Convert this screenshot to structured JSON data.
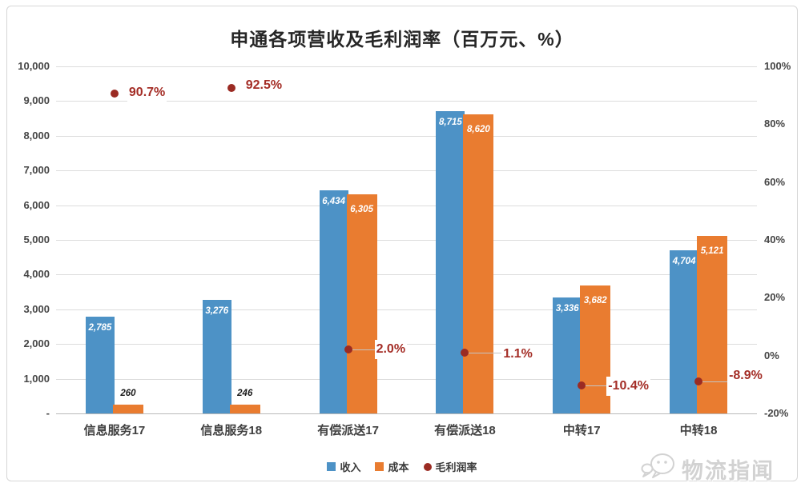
{
  "chart_data": {
    "type": "bar",
    "title": "申通各项营收及毛利润率（百万元、%）",
    "categories": [
      "信息服务17",
      "信息服务18",
      "有偿派送17",
      "有偿派送18",
      "中转17",
      "中转18"
    ],
    "series": [
      {
        "name": "收入",
        "type": "bar",
        "axis": "left",
        "color": "#4D92C6",
        "values": [
          2785,
          3276,
          6434,
          8715,
          3336,
          4704
        ],
        "value_labels": [
          "2,785",
          "3,276",
          "6,434",
          "8,715",
          "3,336",
          "4,704"
        ]
      },
      {
        "name": "成本",
        "type": "bar",
        "axis": "left",
        "color": "#E97C30",
        "values": [
          260,
          246,
          6305,
          8620,
          3682,
          5121
        ],
        "value_labels": [
          "260",
          "246",
          "6,305",
          "8,620",
          "3,682",
          "5,121"
        ]
      },
      {
        "name": "毛利润率",
        "type": "scatter",
        "axis": "right",
        "color": "#9B2B23",
        "label_color": "#A42D26",
        "values": [
          90.7,
          92.5,
          2.0,
          1.1,
          -10.4,
          -8.9
        ],
        "value_labels": [
          "90.7%",
          "92.5%",
          "2.0%",
          "1.1%",
          "-10.4%",
          "-8.9%"
        ]
      }
    ],
    "left_axis": {
      "min": 0,
      "max": 10000,
      "step": 1000,
      "ticks": [
        {
          "v": 10000,
          "label": "10,000"
        },
        {
          "v": 9000,
          "label": "9,000"
        },
        {
          "v": 8000,
          "label": "8,000"
        },
        {
          "v": 7000,
          "label": "7,000"
        },
        {
          "v": 6000,
          "label": "6,000"
        },
        {
          "v": 5000,
          "label": "5,000"
        },
        {
          "v": 4000,
          "label": "4,000"
        },
        {
          "v": 3000,
          "label": "3,000"
        },
        {
          "v": 2000,
          "label": "2,000"
        },
        {
          "v": 1000,
          "label": "1,000"
        },
        {
          "v": 0,
          "label": "-"
        }
      ]
    },
    "right_axis": {
      "min": -20,
      "max": 100,
      "step": 20,
      "ticks": [
        {
          "v": 100,
          "label": "100%"
        },
        {
          "v": 80,
          "label": "80%"
        },
        {
          "v": 60,
          "label": "60%"
        },
        {
          "v": 40,
          "label": "40%"
        },
        {
          "v": 20,
          "label": "20%"
        },
        {
          "v": 0,
          "label": "0%"
        },
        {
          "v": -20,
          "label": "-20%"
        }
      ]
    },
    "grid": true,
    "legend_position": "bottom"
  },
  "legend": {
    "items": [
      {
        "label": "收入",
        "color": "#4D92C6",
        "marker": "square"
      },
      {
        "label": "成本",
        "color": "#E97C30",
        "marker": "square"
      },
      {
        "label": "毛利润率",
        "color": "#9B2B23",
        "marker": "dot"
      }
    ]
  },
  "watermark": {
    "text": "物流指闻"
  }
}
